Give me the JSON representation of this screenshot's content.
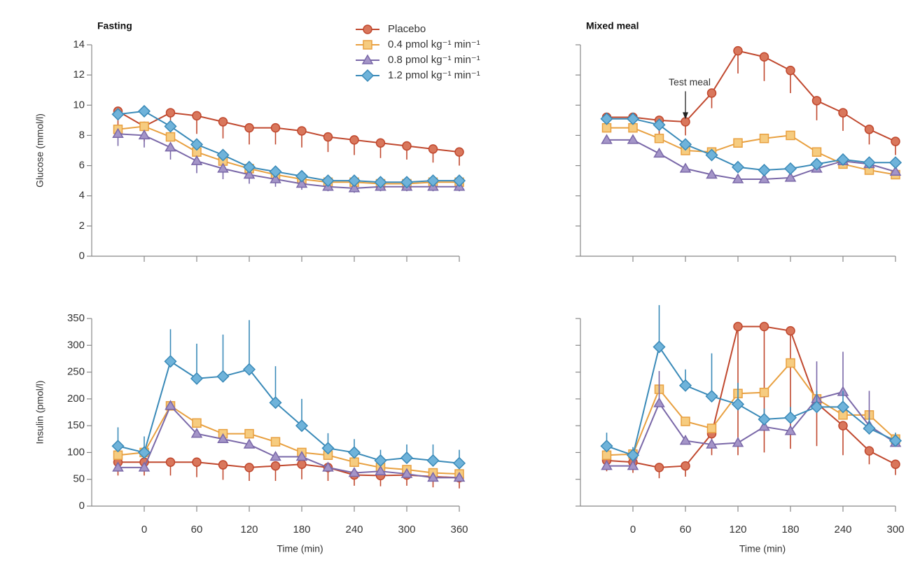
{
  "chart_data": [
    {
      "type": "line",
      "title": "Fasting",
      "ylabel": "Glucose (mmol/l)",
      "x": [
        -30,
        0,
        30,
        60,
        90,
        120,
        150,
        180,
        210,
        240,
        270,
        300,
        330,
        360
      ],
      "xlim": [
        -60,
        360
      ],
      "xticks": [
        0,
        60,
        120,
        180,
        240,
        300,
        360
      ],
      "show_xtick_labels": false,
      "ylim": [
        0,
        14
      ],
      "yticks": [
        0,
        2,
        4,
        6,
        8,
        10,
        12,
        14
      ],
      "show_ytick_labels": true,
      "legend": true,
      "series": [
        {
          "name": "Placebo",
          "color": "#c0482e",
          "marker": "circle",
          "error_direction": "down",
          "values": [
            9.6,
            8.6,
            9.5,
            9.3,
            8.9,
            8.5,
            8.5,
            8.3,
            7.9,
            7.7,
            7.5,
            7.3,
            7.1,
            6.9
          ],
          "errors": [
            1.0,
            1.0,
            1.1,
            1.2,
            1.1,
            1.1,
            1.1,
            1.1,
            1.0,
            1.0,
            1.0,
            0.9,
            0.9,
            0.9
          ]
        },
        {
          "name": "0.4 pmol kg⁻¹ min⁻¹",
          "color": "#e8a040",
          "marker": "square",
          "values": [
            8.4,
            8.6,
            7.9,
            6.9,
            6.3,
            5.8,
            5.4,
            5.1,
            4.9,
            4.9,
            4.8,
            4.8,
            4.9,
            4.9
          ]
        },
        {
          "name": "0.8 pmol kg⁻¹ min⁻¹",
          "color": "#7a68a8",
          "marker": "triangle",
          "error_direction": "down",
          "values": [
            8.1,
            8.0,
            7.2,
            6.3,
            5.8,
            5.4,
            5.1,
            4.8,
            4.6,
            4.5,
            4.6,
            4.6,
            4.6,
            4.6
          ],
          "errors": [
            0.8,
            0.8,
            0.8,
            0.8,
            0.7,
            0.6,
            0.5,
            0.4,
            0.3,
            0.3,
            0.3,
            0.3,
            0.3,
            0.3
          ]
        },
        {
          "name": "1.2 pmol kg⁻¹ min⁻¹",
          "color": "#3a8ab8",
          "marker": "diamond",
          "values": [
            9.4,
            9.6,
            8.6,
            7.4,
            6.7,
            5.9,
            5.6,
            5.3,
            5.0,
            5.0,
            4.9,
            4.9,
            5.0,
            5.0
          ]
        }
      ]
    },
    {
      "type": "line",
      "title": "Mixed meal",
      "annotation": "Test meal",
      "annotation_x": 60,
      "x": [
        -30,
        0,
        30,
        60,
        90,
        120,
        150,
        180,
        210,
        240,
        270,
        300
      ],
      "xlim": [
        -60,
        300
      ],
      "xticks": [
        0,
        60,
        120,
        180,
        240,
        300
      ],
      "show_xtick_labels": false,
      "ylim": [
        0,
        14
      ],
      "yticks": [
        0,
        2,
        4,
        6,
        8,
        10,
        12,
        14
      ],
      "show_ytick_labels": false,
      "series": [
        {
          "color": "#c0482e",
          "marker": "circle",
          "error_direction": "down",
          "values": [
            9.2,
            9.2,
            9.0,
            8.9,
            10.8,
            13.6,
            13.2,
            12.3,
            10.3,
            9.5,
            8.4,
            7.6
          ],
          "errors": [
            0.9,
            0.9,
            0.9,
            0.9,
            1.0,
            1.5,
            1.6,
            1.5,
            1.3,
            1.2,
            1.0,
            0.9
          ]
        },
        {
          "color": "#e8a040",
          "marker": "square",
          "values": [
            8.5,
            8.5,
            7.8,
            7.0,
            6.9,
            7.5,
            7.8,
            8.0,
            6.9,
            6.1,
            5.7,
            5.4
          ]
        },
        {
          "color": "#7a68a8",
          "marker": "triangle",
          "values": [
            7.7,
            7.7,
            6.8,
            5.8,
            5.4,
            5.1,
            5.1,
            5.2,
            5.8,
            6.3,
            6.1,
            5.6
          ]
        },
        {
          "color": "#3a8ab8",
          "marker": "diamond",
          "values": [
            9.1,
            9.1,
            8.7,
            7.4,
            6.7,
            5.9,
            5.7,
            5.8,
            6.1,
            6.4,
            6.2,
            6.2
          ]
        }
      ]
    },
    {
      "type": "line",
      "ylabel": "Insulin (pmol/l)",
      "xlabel": "Time (min)",
      "x": [
        -30,
        0,
        30,
        60,
        90,
        120,
        150,
        180,
        210,
        240,
        270,
        300,
        330,
        360
      ],
      "xlim": [
        -60,
        360
      ],
      "xticks": [
        0,
        60,
        120,
        180,
        240,
        300,
        360
      ],
      "show_xtick_labels": true,
      "ylim": [
        0,
        350
      ],
      "yticks": [
        0,
        50,
        100,
        150,
        200,
        250,
        300,
        350
      ],
      "show_ytick_labels": true,
      "series": [
        {
          "color": "#c0482e",
          "marker": "circle",
          "error_direction": "down",
          "values": [
            82,
            82,
            82,
            82,
            77,
            72,
            75,
            78,
            72,
            58,
            57,
            58,
            55,
            53
          ],
          "errors": [
            25,
            25,
            25,
            28,
            28,
            25,
            28,
            28,
            25,
            20,
            20,
            20,
            20,
            20
          ]
        },
        {
          "color": "#e8a040",
          "marker": "square",
          "values": [
            95,
            100,
            187,
            155,
            135,
            135,
            120,
            100,
            95,
            82,
            72,
            68,
            62,
            60
          ]
        },
        {
          "color": "#7a68a8",
          "marker": "triangle",
          "values": [
            72,
            72,
            187,
            135,
            125,
            115,
            92,
            92,
            72,
            62,
            65,
            60,
            53,
            53
          ]
        },
        {
          "color": "#3a8ab8",
          "marker": "diamond",
          "error_direction": "up",
          "values": [
            112,
            100,
            270,
            238,
            242,
            255,
            193,
            150,
            108,
            100,
            85,
            90,
            85,
            80
          ],
          "errors": [
            35,
            30,
            60,
            65,
            78,
            92,
            68,
            50,
            28,
            25,
            20,
            25,
            30,
            25
          ]
        }
      ]
    },
    {
      "type": "line",
      "xlabel": "Time (min)",
      "x": [
        -30,
        0,
        30,
        60,
        90,
        120,
        150,
        180,
        210,
        240,
        270,
        300
      ],
      "xlim": [
        -60,
        300
      ],
      "xticks": [
        0,
        60,
        120,
        180,
        240,
        300
      ],
      "show_xtick_labels": true,
      "ylim": [
        0,
        350
      ],
      "yticks": [
        0,
        50,
        100,
        150,
        200,
        250,
        300,
        350
      ],
      "show_ytick_labels": false,
      "series": [
        {
          "color": "#c0482e",
          "marker": "circle",
          "error_direction": "down",
          "values": [
            85,
            82,
            72,
            75,
            135,
            335,
            335,
            327,
            192,
            150,
            103,
            78
          ],
          "errors": [
            20,
            20,
            20,
            20,
            40,
            240,
            235,
            220,
            80,
            55,
            25,
            20
          ]
        },
        {
          "color": "#e8a040",
          "marker": "square",
          "values": [
            95,
            97,
            218,
            158,
            145,
            210,
            212,
            267,
            200,
            170,
            170,
            125
          ]
        },
        {
          "color": "#7a68a8",
          "marker": "triangle",
          "error_direction": "up",
          "values": [
            75,
            75,
            192,
            122,
            115,
            118,
            148,
            140,
            200,
            213,
            150,
            118
          ],
          "errors": [
            10,
            10,
            60,
            10,
            10,
            10,
            10,
            10,
            70,
            75,
            65,
            10
          ]
        },
        {
          "color": "#3a8ab8",
          "marker": "diamond",
          "error_direction": "up",
          "values": [
            112,
            95,
            297,
            225,
            205,
            190,
            162,
            165,
            185,
            185,
            145,
            122
          ],
          "errors": [
            25,
            15,
            78,
            30,
            80,
            40,
            20,
            20,
            30,
            30,
            20,
            15
          ]
        }
      ]
    }
  ]
}
